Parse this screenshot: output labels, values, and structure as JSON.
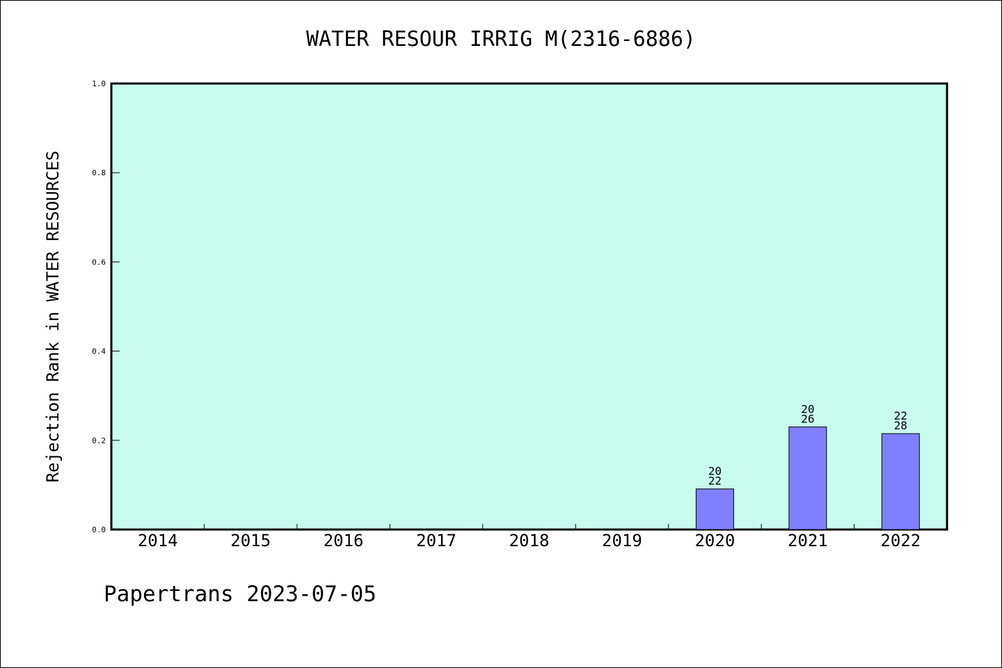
{
  "chart_data": {
    "type": "bar",
    "title": "WATER RESOUR IRRIG M(2316-6886)",
    "xlabel": "",
    "ylabel": "Rejection Rank in WATER RESOURCES",
    "categories": [
      "2014",
      "2015",
      "2016",
      "2017",
      "2018",
      "2019",
      "2020",
      "2021",
      "2022"
    ],
    "values": [
      null,
      null,
      null,
      null,
      null,
      null,
      0.091,
      0.23,
      0.215
    ],
    "bar_labels": [
      null,
      null,
      null,
      null,
      null,
      null,
      [
        "20",
        "22"
      ],
      [
        "20",
        "26"
      ],
      [
        "22",
        "28"
      ]
    ],
    "ylim": [
      0,
      1.0
    ],
    "yticks": [
      "0.0",
      "0.2",
      "0.4",
      "0.6",
      "0.8",
      "1.0"
    ],
    "grid": false,
    "colors": {
      "plot_background": "#c8fcee",
      "bar_fill": "#8080ff",
      "axes": "#000000"
    }
  },
  "footer": {
    "text": "Papertrans 2023-07-05"
  }
}
